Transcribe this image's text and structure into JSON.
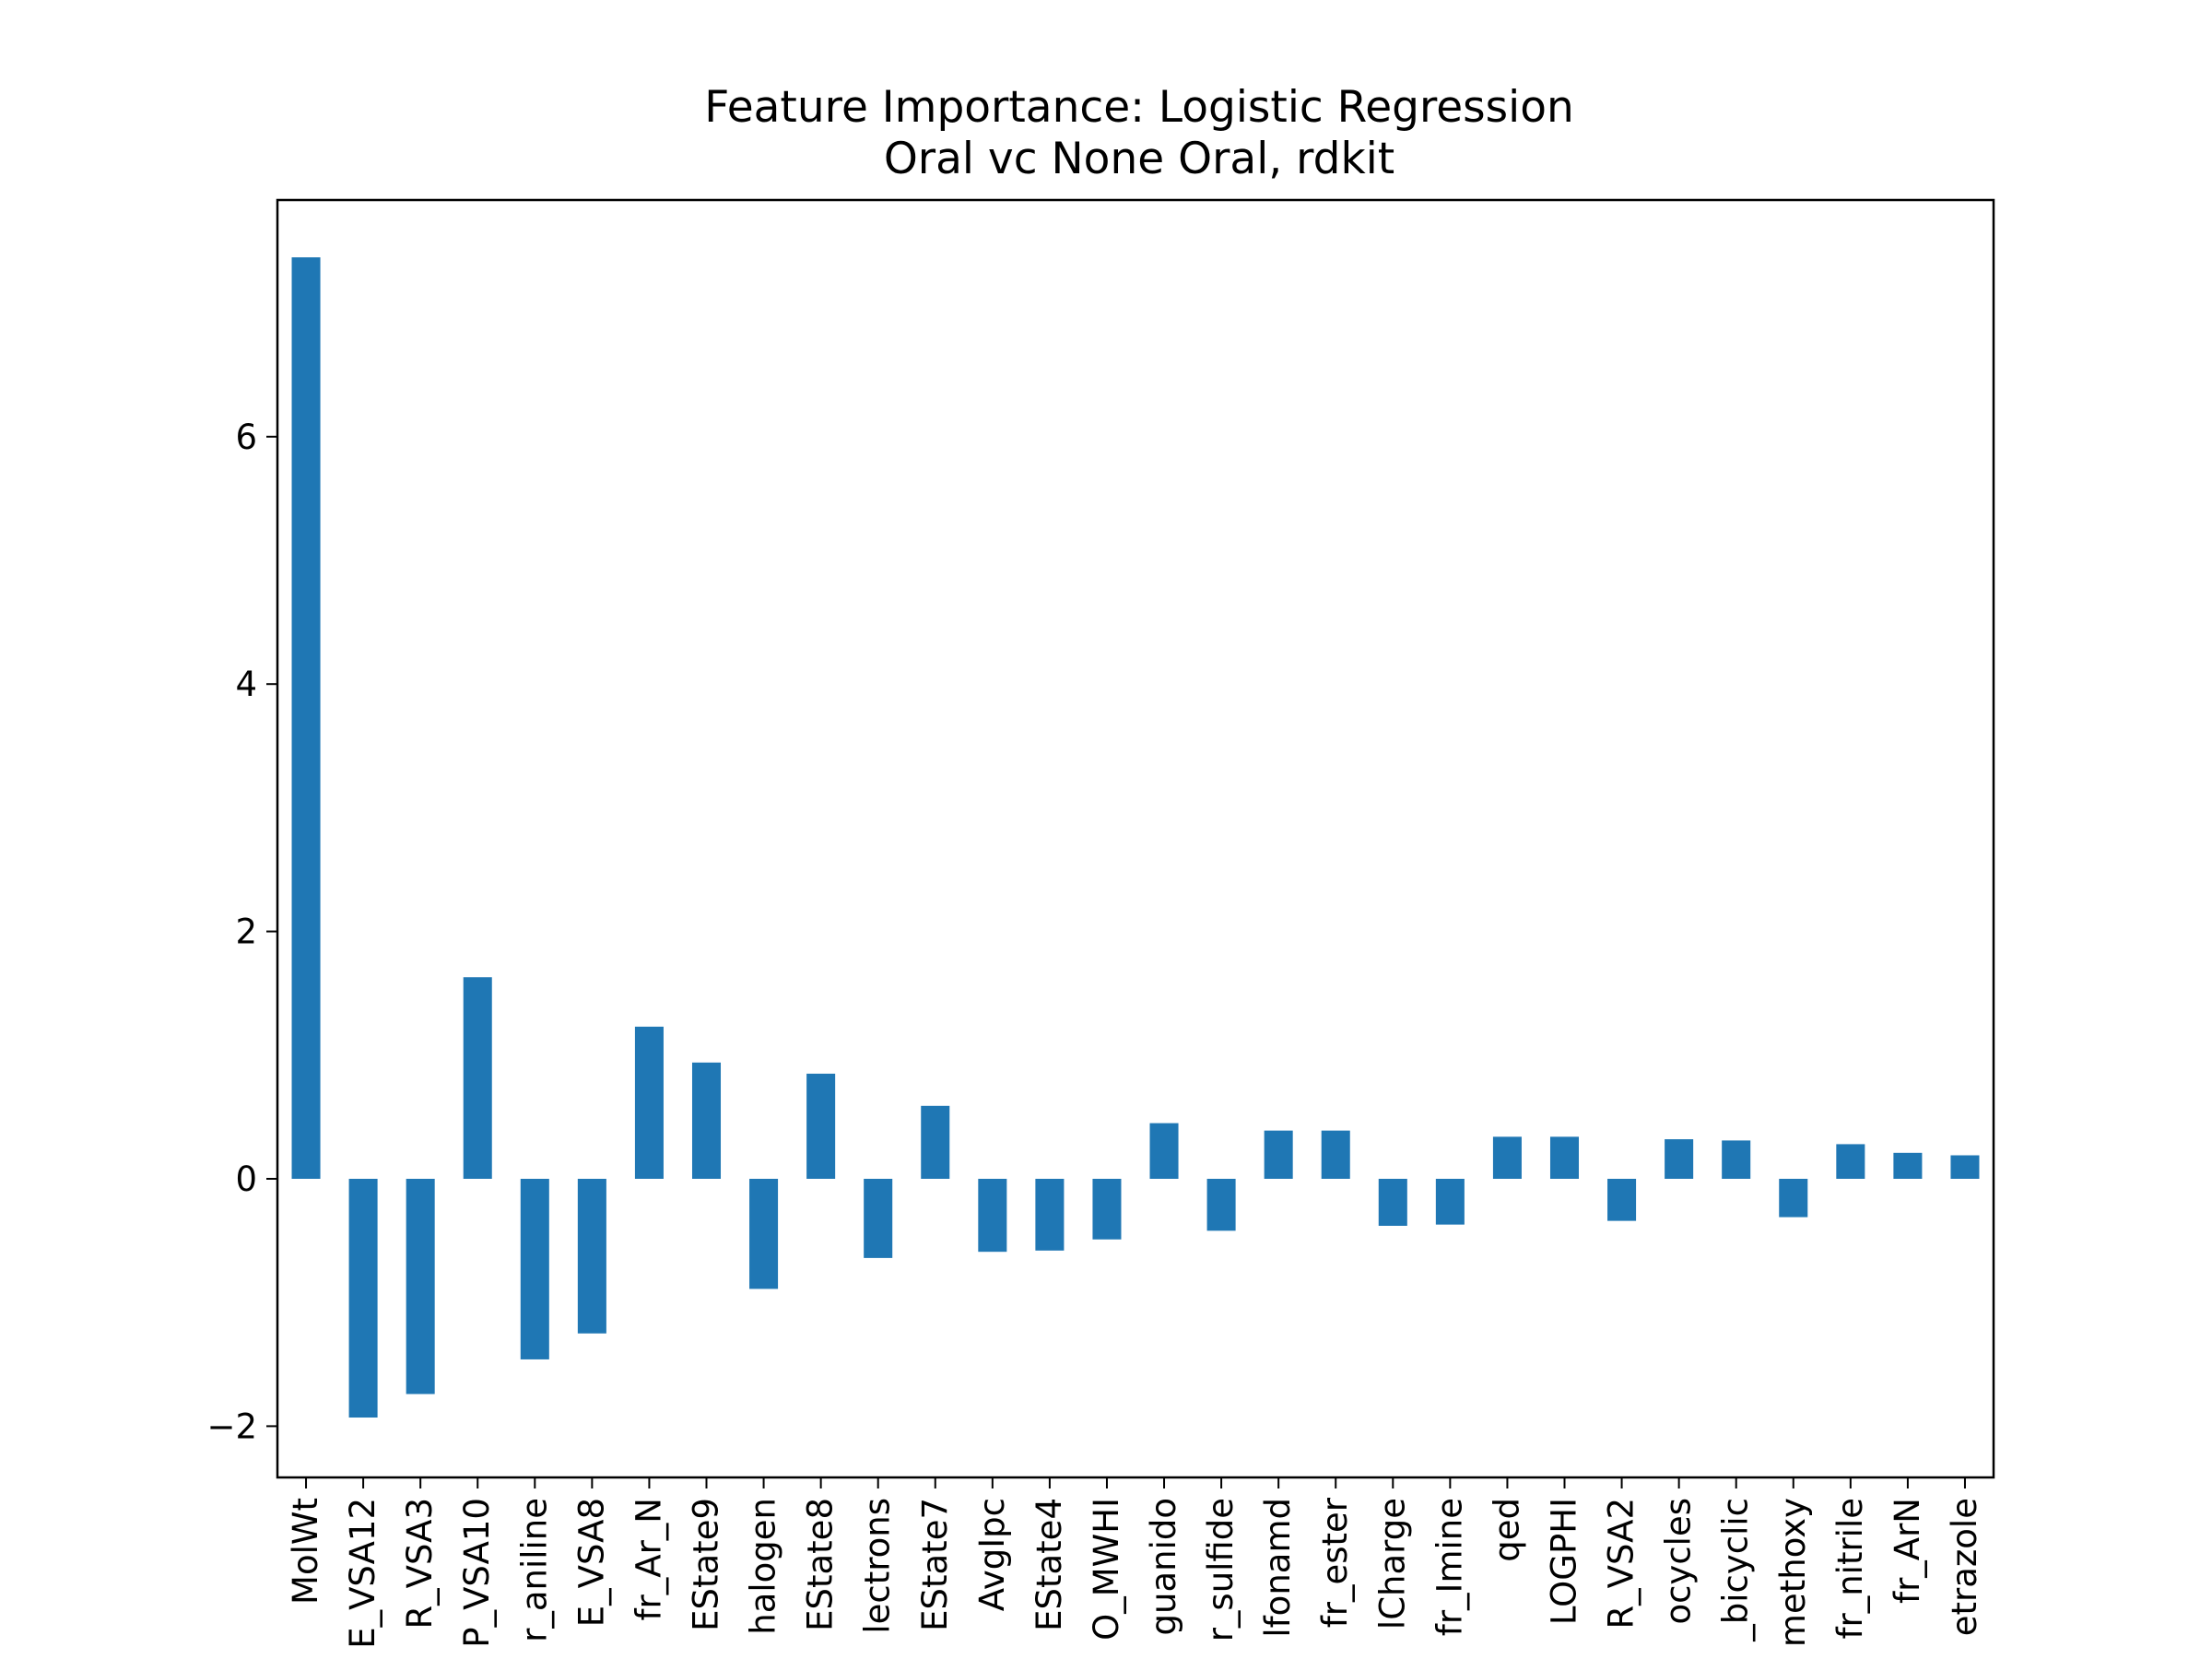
{
  "chart_data": {
    "type": "bar",
    "title": "Feature Importance: Logistic Regression",
    "subtitle": "Oral vc None Oral, rdkit",
    "xlabel": "",
    "ylabel": "",
    "ylim": [
      -2.4,
      7.9
    ],
    "yticks": [
      -2,
      0,
      2,
      4,
      6
    ],
    "ytick_labels": [
      "−2",
      "0",
      "2",
      "4",
      "6"
    ],
    "bar_color": "#1f77b4",
    "grid": false,
    "categories": [
      "MolWt",
      "E_VSA12",
      "R_VSA3",
      "P_VSA10",
      "r_aniline",
      "E_VSA8",
      "fr_Ar_N",
      "EState9",
      "halogen",
      "EState8",
      "lectrons",
      "EState7",
      "AvgIpc",
      "EState4",
      "O_MWHI",
      "guanido",
      "r_sulfide",
      "lfonamd",
      "fr_ester",
      "lCharge",
      "fr_Imine",
      "qed",
      "LOGPHI",
      "R_VSA2",
      "ocycles",
      "_bicyclic",
      "methoxy",
      "fr_nitrile",
      "fr_ArN",
      "etrazole"
    ],
    "values": [
      7.45,
      -1.93,
      -1.74,
      1.63,
      -1.46,
      -1.25,
      1.23,
      0.94,
      -0.89,
      0.85,
      -0.64,
      0.59,
      -0.59,
      -0.58,
      -0.49,
      0.45,
      -0.42,
      0.39,
      0.39,
      -0.38,
      -0.37,
      0.34,
      0.34,
      -0.34,
      0.32,
      0.31,
      -0.31,
      0.28,
      0.21,
      0.19
    ]
  }
}
